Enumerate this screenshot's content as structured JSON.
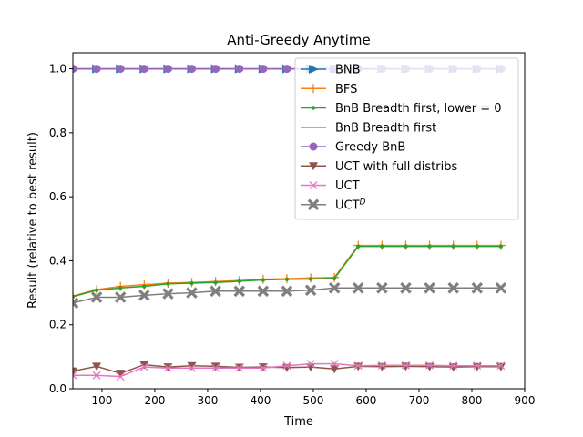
{
  "chart_data": {
    "type": "line",
    "title": "Anti-Greedy    Anytime",
    "xlabel": "Time",
    "ylabel": "Result (relative to best result)",
    "xlim": [
      45,
      900
    ],
    "ylim": [
      0,
      1.05
    ],
    "xticks": [
      100,
      200,
      300,
      400,
      500,
      600,
      700,
      800,
      900
    ],
    "yticks": [
      0.0,
      0.2,
      0.4,
      0.6,
      0.8,
      1.0
    ],
    "grid": false,
    "legend_position": "top-right",
    "x": [
      45,
      90,
      135,
      180,
      225,
      270,
      315,
      360,
      405,
      450,
      495,
      540,
      585,
      630,
      675,
      720,
      765,
      810,
      855
    ],
    "series": [
      {
        "name": "BNB",
        "color": "#1f77b4",
        "marker": "triangle-right",
        "values": [
          1,
          1,
          1,
          1,
          1,
          1,
          1,
          1,
          1,
          1,
          1,
          1,
          1,
          1,
          1,
          1,
          1,
          1,
          1
        ]
      },
      {
        "name": "BFS",
        "color": "#ff7f0e",
        "marker": "plus",
        "values": [
          0.29,
          0.31,
          0.32,
          0.325,
          0.33,
          0.332,
          0.335,
          0.338,
          0.342,
          0.344,
          0.346,
          0.348,
          0.448,
          0.448,
          0.448,
          0.448,
          0.448,
          0.448,
          0.448
        ]
      },
      {
        "name": "BnB Breadth first, lower = 0",
        "color": "#2ca02c",
        "marker": "dot",
        "values": [
          0.288,
          0.308,
          0.315,
          0.32,
          0.328,
          0.33,
          0.332,
          0.336,
          0.34,
          0.342,
          0.343,
          0.345,
          0.445,
          0.445,
          0.445,
          0.445,
          0.445,
          0.445,
          0.445
        ]
      },
      {
        "name": "BnB Breadth first",
        "color": "#d62728",
        "marker": "none",
        "values": [
          1,
          1,
          1,
          1,
          1,
          1,
          1,
          1,
          1,
          1,
          1,
          1,
          1,
          1,
          1,
          1,
          1,
          1,
          1
        ]
      },
      {
        "name": "Greedy BnB",
        "color": "#9467bd",
        "marker": "circle",
        "values": [
          1,
          1,
          1,
          1,
          1,
          1,
          1,
          1,
          1,
          1,
          1,
          1,
          1,
          1,
          1,
          1,
          1,
          1,
          1
        ]
      },
      {
        "name": "UCT with full distribs",
        "color": "#8c564b",
        "marker": "triangle-down",
        "values": [
          0.055,
          0.07,
          0.048,
          0.075,
          0.068,
          0.072,
          0.07,
          0.067,
          0.068,
          0.066,
          0.068,
          0.062,
          0.07,
          0.069,
          0.07,
          0.069,
          0.068,
          0.069,
          0.069
        ]
      },
      {
        "name": "UCT",
        "color": "#e377c2",
        "marker": "x",
        "values": [
          0.042,
          0.042,
          0.038,
          0.068,
          0.065,
          0.065,
          0.065,
          0.065,
          0.065,
          0.072,
          0.078,
          0.078,
          0.072,
          0.073,
          0.073,
          0.073,
          0.072,
          0.072,
          0.072
        ]
      },
      {
        "name": "UCT",
        "name_sup": "D",
        "color": "#7f7f7f",
        "marker": "filled-x",
        "values": [
          0.268,
          0.286,
          0.286,
          0.292,
          0.297,
          0.3,
          0.305,
          0.305,
          0.305,
          0.305,
          0.308,
          0.315,
          0.315,
          0.315,
          0.315,
          0.315,
          0.315,
          0.315,
          0.315
        ]
      }
    ]
  }
}
